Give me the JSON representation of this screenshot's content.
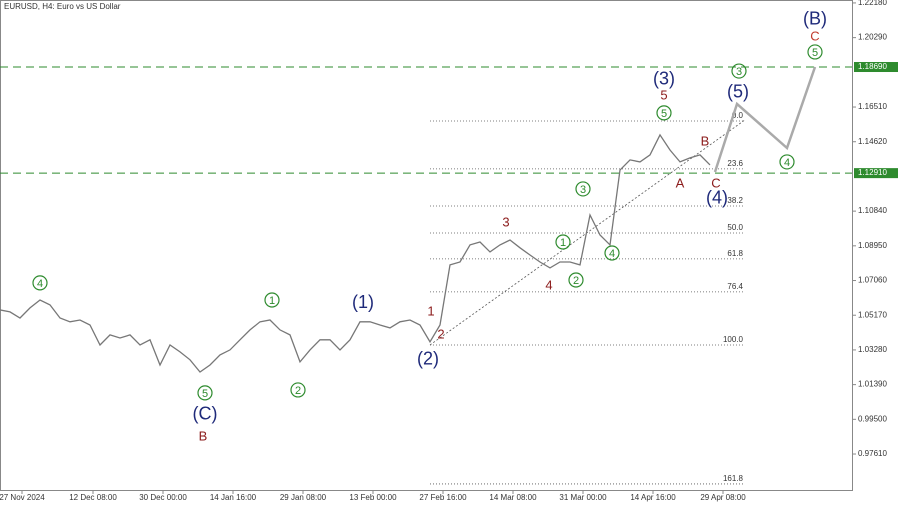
{
  "chart_data": {
    "type": "line",
    "title": "EURUSD, H4:  Euro vs US Dollar",
    "xlim": [
      0,
      85.2
    ],
    "ylim": [
      0.9565,
      1.2234
    ],
    "xticks": [
      {
        "value": 2.2,
        "label": "27 Nov 2024"
      },
      {
        "value": 9.3,
        "label": "12 Dec 08:00"
      },
      {
        "value": 16.3,
        "label": "30 Dec 00:00"
      },
      {
        "value": 23.3,
        "label": "14 Jan 16:00"
      },
      {
        "value": 30.3,
        "label": "29 Jan 08:00"
      },
      {
        "value": 37.3,
        "label": "13 Feb 00:00"
      },
      {
        "value": 44.3,
        "label": "27 Feb 16:00"
      },
      {
        "value": 51.3,
        "label": "14 Mar 08:00"
      },
      {
        "value": 58.3,
        "label": "31 Mar 00:00"
      },
      {
        "value": 65.3,
        "label": "14 Apr 16:00"
      },
      {
        "value": 72.3,
        "label": "29 Apr 08:00"
      }
    ],
    "yticks": [
      {
        "value": 1.2218,
        "label": "1.22180"
      },
      {
        "value": 1.2029,
        "label": "1.20290"
      },
      {
        "value": 1.1651,
        "label": "1.16510"
      },
      {
        "value": 1.1462,
        "label": "1.14620"
      },
      {
        "value": 1.1084,
        "label": "1.10840"
      },
      {
        "value": 1.0895,
        "label": "1.08950"
      },
      {
        "value": 1.0706,
        "label": "1.07060"
      },
      {
        "value": 1.0517,
        "label": "1.05170"
      },
      {
        "value": 1.0328,
        "label": "1.03280"
      },
      {
        "value": 1.0139,
        "label": "1.01390"
      },
      {
        "value": 0.995,
        "label": "0.99500"
      },
      {
        "value": 0.9761,
        "label": "0.97610"
      }
    ],
    "levels": [
      {
        "value": 1.1869,
        "label": "1.18690"
      },
      {
        "value": 1.1291,
        "label": "1.12910"
      }
    ],
    "level_color": "#2e8b2e",
    "series": [
      {
        "color": "#777777",
        "x": [
          0,
          1,
          2,
          3,
          4,
          5,
          6,
          7,
          8,
          9,
          10,
          11,
          12,
          13,
          14,
          15,
          16,
          17,
          18,
          19,
          20,
          21,
          22,
          23,
          24,
          25,
          26,
          27,
          28,
          29,
          30,
          31,
          32,
          33,
          34,
          35,
          36,
          37,
          38,
          39,
          40,
          41,
          42,
          43,
          44,
          45,
          46,
          47,
          48,
          49,
          50,
          51,
          52,
          53,
          54,
          55,
          56,
          57,
          58,
          59,
          60,
          61,
          62,
          63,
          64,
          65,
          66,
          67,
          68,
          69,
          70,
          71
        ],
        "values": [
          1.0546,
          1.0535,
          1.0502,
          1.0557,
          1.06,
          1.0573,
          1.0502,
          1.0481,
          1.0491,
          1.0464,
          1.0355,
          1.041,
          1.0393,
          1.041,
          1.0355,
          1.0383,
          1.0246,
          1.0355,
          1.0317,
          1.0274,
          1.0208,
          1.0246,
          1.0301,
          1.0328,
          1.0383,
          1.0437,
          1.0481,
          1.0491,
          1.0437,
          1.041,
          1.0263,
          1.0328,
          1.0383,
          1.0383,
          1.0328,
          1.0383,
          1.0481,
          1.0481,
          1.0464,
          1.0448,
          1.0481,
          1.0491,
          1.0464,
          1.0372,
          1.0464,
          1.0791,
          1.0807,
          1.09,
          1.0916,
          1.0862,
          1.09,
          1.0927,
          1.0884,
          1.0845,
          1.0807,
          1.0775,
          1.0807,
          1.0807,
          1.0791,
          1.1063,
          1.0954,
          1.09,
          1.1308,
          1.1363,
          1.1352,
          1.139,
          1.1499,
          1.1417,
          1.1352,
          1.1374,
          1.139,
          1.1336
        ]
      },
      {
        "color": "#aaaaaa",
        "x": [
          71.5,
          73.7,
          78.7,
          81.5
        ],
        "values": [
          1.1297,
          1.1668,
          1.1428,
          1.1869
        ]
      }
    ],
    "trendline": {
      "x": [
        43,
        74.5
      ],
      "values": [
        1.0355,
        1.1581
      ]
    },
    "fib_levels": [
      {
        "value": 1.1575,
        "label": "0.0"
      },
      {
        "value": 1.1314,
        "label": "23.6"
      },
      {
        "value": 1.1112,
        "label": "38.2"
      },
      {
        "value": 1.0965,
        "label": "50.0"
      },
      {
        "value": 1.0824,
        "label": "61.8"
      },
      {
        "value": 1.0644,
        "label": "76.4"
      },
      {
        "value": 1.0355,
        "label": "100.0"
      },
      {
        "value": 0.9598,
        "label": "161.8"
      }
    ],
    "fib_x": [
      43,
      74.5
    ],
    "annotations": [
      {
        "text": "4",
        "x": 4.0,
        "y": 1.0693,
        "color": "#2e8b2e",
        "circled": true
      },
      {
        "text": "5",
        "x": 20.5,
        "y": 1.0094,
        "color": "#2e8b2e",
        "circled": true
      },
      {
        "text": "(C)",
        "x": 20.5,
        "y": 0.998,
        "color": "#1f2a7a",
        "circled": false
      },
      {
        "text": "B",
        "x": 20.3,
        "y": 0.986,
        "color": "#8b1a1a",
        "circled": false
      },
      {
        "text": "1",
        "x": 27.2,
        "y": 1.06,
        "color": "#2e8b2e",
        "circled": true
      },
      {
        "text": "2",
        "x": 29.8,
        "y": 1.011,
        "color": "#2e8b2e",
        "circled": true
      },
      {
        "text": "(1)",
        "x": 36.3,
        "y": 1.0589,
        "color": "#1f2a7a",
        "circled": false
      },
      {
        "text": "1",
        "x": 43.1,
        "y": 1.054,
        "color": "#8b1a1a",
        "circled": false
      },
      {
        "text": "2",
        "x": 44.1,
        "y": 1.0415,
        "color": "#8b1a1a",
        "circled": false
      },
      {
        "text": "(2)",
        "x": 42.8,
        "y": 1.0279,
        "color": "#1f2a7a",
        "circled": false
      },
      {
        "text": "3",
        "x": 50.6,
        "y": 1.1025,
        "color": "#8b1a1a",
        "circled": false
      },
      {
        "text": "4",
        "x": 54.9,
        "y": 1.0682,
        "color": "#8b1a1a",
        "circled": false
      },
      {
        "text": "1",
        "x": 56.3,
        "y": 1.0916,
        "color": "#2e8b2e",
        "circled": true
      },
      {
        "text": "2",
        "x": 57.6,
        "y": 1.0709,
        "color": "#2e8b2e",
        "circled": true
      },
      {
        "text": "3",
        "x": 58.3,
        "y": 1.1205,
        "color": "#2e8b2e",
        "circled": true
      },
      {
        "text": "4",
        "x": 61.2,
        "y": 1.0856,
        "color": "#2e8b2e",
        "circled": true
      },
      {
        "text": "(3)",
        "x": 66.4,
        "y": 1.1804,
        "color": "#1f2a7a",
        "circled": false
      },
      {
        "text": "5",
        "x": 66.4,
        "y": 1.1717,
        "color": "#8b1a1a",
        "circled": false
      },
      {
        "text": "5",
        "x": 66.4,
        "y": 1.1619,
        "color": "#2e8b2e",
        "circled": true
      },
      {
        "text": "A",
        "x": 68.0,
        "y": 1.1238,
        "color": "#8b1a1a",
        "circled": false
      },
      {
        "text": "B",
        "x": 70.5,
        "y": 1.1466,
        "color": "#8b1a1a",
        "circled": false
      },
      {
        "text": "C",
        "x": 71.6,
        "y": 1.1238,
        "color": "#8b1a1a",
        "circled": false
      },
      {
        "text": "(4)",
        "x": 71.7,
        "y": 1.1156,
        "color": "#1f2a7a",
        "circled": false
      },
      {
        "text": "(5)",
        "x": 73.8,
        "y": 1.1733,
        "color": "#1f2a7a",
        "circled": false
      },
      {
        "text": "3",
        "x": 73.9,
        "y": 1.1847,
        "color": "#2e8b2e",
        "circled": true
      },
      {
        "text": "4",
        "x": 78.7,
        "y": 1.1352,
        "color": "#2e8b2e",
        "circled": true
      },
      {
        "text": "5",
        "x": 81.5,
        "y": 1.1951,
        "color": "#2e8b2e",
        "circled": true
      },
      {
        "text": "C",
        "x": 81.5,
        "y": 1.2038,
        "color": "#c0392b",
        "circled": false
      },
      {
        "text": "(B)",
        "x": 81.5,
        "y": 1.2131,
        "color": "#1f2a7a",
        "circled": false
      }
    ]
  }
}
